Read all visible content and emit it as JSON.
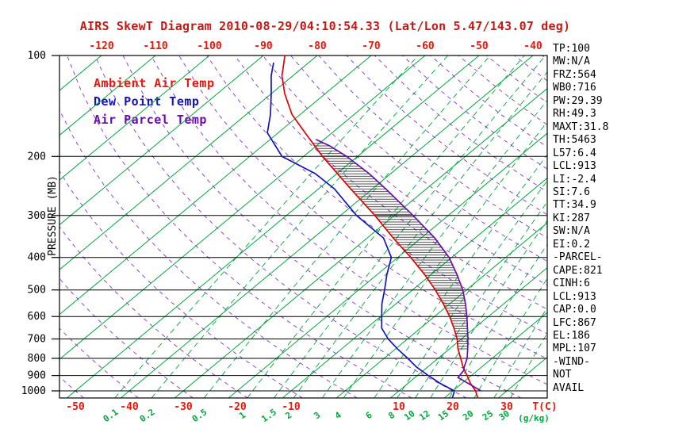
{
  "title": "AIRS SkewT Diagram 2010-08-29/04:10:54.33 (Lat/Lon 5.47/143.07 deg)",
  "colors": {
    "title": "#c11b17",
    "red_axis": "#e8180c",
    "green": "#00a83e",
    "purple_adiabat": "#8833cc",
    "black": "#000000",
    "trace_red": "#dd0504",
    "trace_blue": "#1414b8",
    "trace_purple": "#6a0dad",
    "hatch": "#222222"
  },
  "legend": {
    "items": [
      {
        "key": "ambient",
        "label": "Ambient Air Temp",
        "color": "#e8180c"
      },
      {
        "key": "dewpoint",
        "label": "Dew Point Temp",
        "color": "#1414b8"
      },
      {
        "key": "parcel",
        "label": "Air Parcel Temp",
        "color": "#6a0dad"
      }
    ]
  },
  "y_axis": {
    "label": "PRESSURE (MB)",
    "ticks": [
      100,
      200,
      300,
      400,
      500,
      600,
      700,
      800,
      900,
      1000
    ]
  },
  "x_axis_top": {
    "ticks": [
      -120,
      -110,
      -100,
      -90,
      -80,
      -70,
      -60,
      -50,
      -40
    ]
  },
  "x_axis_bottom": {
    "temp_ticks": [
      -50,
      -40,
      -30,
      -20,
      -10,
      10,
      20,
      30
    ],
    "temp_unit": "T(C)",
    "mixing_ratio_unit": "(g/kg)"
  },
  "stats_panel": {
    "lines": [
      "TP:100",
      "MW:N/A",
      "FRZ:564",
      "WB0:716",
      "PW:29.39",
      "RH:49.3",
      "MAXT:31.8",
      "TH:5463",
      "L57:6.4",
      "LCL:913",
      "LI:-2.4",
      "SI:7.6",
      "TT:34.9",
      "KI:287",
      "SW:N/A",
      "EI:0.2",
      "-PARCEL-",
      "CAPE:821",
      "CINH:6",
      "LCL:913",
      "CAP:0.0",
      "LFC:867",
      "EL:186",
      "MPL:107",
      "-WIND-",
      "NOT",
      "AVAIL"
    ]
  },
  "chart_data": {
    "type": "line",
    "title": "AIRS SkewT Diagram 2010-08-29/04:10:54.33 (Lat/Lon 5.47/143.07 deg)",
    "xlabel": "T(C)",
    "ylabel": "PRESSURE (MB)",
    "y_scale": "log",
    "ylim": [
      1050,
      100
    ],
    "x_bottom_range": [
      -55,
      35
    ],
    "grid": {
      "isotherms_C": {
        "min": -160,
        "max": 40,
        "step": 10
      },
      "dry_adiabats_thetaC": {
        "min": -50,
        "max": 180,
        "step": 10
      },
      "mixing_ratio_lines_gkg": [
        0.1,
        0.2,
        0.5,
        1,
        1.5,
        2,
        3,
        4,
        6,
        8,
        10,
        12,
        15,
        20,
        25,
        30
      ],
      "pressure_lines_mb": [
        100,
        200,
        300,
        400,
        500,
        600,
        700,
        800,
        900,
        1000
      ]
    },
    "cape_hatch": {
      "bottom_mb": 760,
      "top_mb": 182
    },
    "series": [
      {
        "key": "ambient",
        "name": "Ambient Air Temp",
        "color": "#dd0504",
        "points_mb_C": [
          [
            1050,
            26.2
          ],
          [
            1000,
            24.2
          ],
          [
            950,
            21.6
          ],
          [
            900,
            19.2
          ],
          [
            850,
            16.6
          ],
          [
            800,
            14.2
          ],
          [
            750,
            11.6
          ],
          [
            700,
            9.2
          ],
          [
            650,
            6.2
          ],
          [
            600,
            2.8
          ],
          [
            550,
            -1.2
          ],
          [
            500,
            -5.8
          ],
          [
            450,
            -11.2
          ],
          [
            400,
            -17.6
          ],
          [
            350,
            -25.2
          ],
          [
            300,
            -33.6
          ],
          [
            250,
            -44.0
          ],
          [
            200,
            -56.5
          ],
          [
            170,
            -65.0
          ],
          [
            150,
            -71.5
          ],
          [
            130,
            -77.5
          ],
          [
            115,
            -82.0
          ],
          [
            100,
            -86.0
          ]
        ]
      },
      {
        "key": "dewpoint",
        "name": "Dew Point Temp",
        "color": "#1414b8",
        "points_mb_C": [
          [
            1050,
            21.5
          ],
          [
            1000,
            20.3
          ],
          [
            950,
            16.0
          ],
          [
            900,
            12.0
          ],
          [
            850,
            8.0
          ],
          [
            800,
            4.4
          ],
          [
            750,
            0.4
          ],
          [
            700,
            -3.6
          ],
          [
            650,
            -7.2
          ],
          [
            600,
            -9.8
          ],
          [
            550,
            -12.6
          ],
          [
            500,
            -15.2
          ],
          [
            450,
            -18.2
          ],
          [
            400,
            -21.2
          ],
          [
            350,
            -27.0
          ],
          [
            300,
            -37.0
          ],
          [
            250,
            -47.0
          ],
          [
            225,
            -54.0
          ],
          [
            200,
            -64.0
          ],
          [
            170,
            -72.0
          ],
          [
            150,
            -75.5
          ],
          [
            130,
            -80.0
          ],
          [
            115,
            -84.0
          ],
          [
            105,
            -86.5
          ]
        ]
      },
      {
        "key": "parcel",
        "name": "Air Parcel Temp",
        "color": "#6a0dad",
        "points_mb_C": [
          [
            1000,
            25.2
          ],
          [
            950,
            21.2
          ],
          [
            913,
            18.0
          ],
          [
            867,
            17.4
          ],
          [
            850,
            16.8
          ],
          [
            800,
            15.4
          ],
          [
            750,
            13.4
          ],
          [
            700,
            11.2
          ],
          [
            650,
            8.7
          ],
          [
            600,
            6.0
          ],
          [
            550,
            2.9
          ],
          [
            500,
            -0.7
          ],
          [
            450,
            -5.2
          ],
          [
            400,
            -10.5
          ],
          [
            350,
            -17.5
          ],
          [
            300,
            -26.5
          ],
          [
            250,
            -37.5
          ],
          [
            225,
            -44.0
          ],
          [
            200,
            -52.0
          ],
          [
            186,
            -57.5
          ],
          [
            178,
            -61.5
          ]
        ]
      }
    ]
  }
}
